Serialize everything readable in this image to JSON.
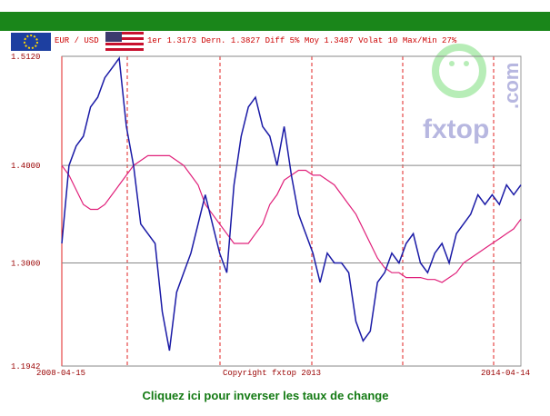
{
  "chart_data": {
    "type": "line",
    "pair": "EUR / USD",
    "summary": "1er 1.3173 Dern. 1.3827 Diff 5% Moy 1.3487 Volat 10 Max/Min 27%",
    "watermark": "fxtop",
    "watermark_suffix": ".com",
    "copyright": "Copyright fxtop 2013",
    "link": "Cliquez ici pour inverser les taux de change",
    "categories": [
      "2008-04-15",
      null,
      null,
      null,
      null,
      null,
      null,
      null,
      null,
      null,
      null,
      null,
      null,
      null,
      null,
      null,
      null,
      null,
      null,
      null,
      null,
      null,
      null,
      null,
      null,
      null,
      null,
      null,
      null,
      null,
      null,
      null,
      null,
      null,
      null,
      null,
      null,
      null,
      null,
      null,
      null,
      null,
      null,
      null,
      null,
      null,
      null,
      null,
      null,
      null,
      null,
      null,
      null,
      null,
      null,
      null,
      null,
      null,
      null,
      null,
      null,
      null,
      null,
      null,
      "2014-04-14"
    ],
    "series": [
      {
        "color": "#1a1aa6",
        "values": [
          1.32,
          1.4,
          1.42,
          1.43,
          1.46,
          1.47,
          1.49,
          1.5,
          1.51,
          1.44,
          1.4,
          1.34,
          1.33,
          1.32,
          1.25,
          1.21,
          1.27,
          1.29,
          1.31,
          1.34,
          1.37,
          1.34,
          1.31,
          1.29,
          1.38,
          1.43,
          1.46,
          1.47,
          1.44,
          1.43,
          1.4,
          1.44,
          1.39,
          1.35,
          1.33,
          1.31,
          1.28,
          1.31,
          1.3,
          1.3,
          1.29,
          1.24,
          1.22,
          1.23,
          1.28,
          1.29,
          1.31,
          1.3,
          1.32,
          1.33,
          1.3,
          1.29,
          1.31,
          1.32,
          1.3,
          1.33,
          1.34,
          1.35,
          1.37,
          1.36,
          1.37,
          1.36,
          1.38,
          1.37,
          1.38
        ]
      },
      {
        "color": "#e0207a",
        "values": [
          1.4,
          1.39,
          1.375,
          1.36,
          1.355,
          1.355,
          1.36,
          1.37,
          1.38,
          1.39,
          1.4,
          1.405,
          1.41,
          1.41,
          1.41,
          1.41,
          1.405,
          1.4,
          1.39,
          1.38,
          1.36,
          1.35,
          1.34,
          1.33,
          1.32,
          1.32,
          1.32,
          1.33,
          1.34,
          1.36,
          1.37,
          1.385,
          1.39,
          1.395,
          1.395,
          1.39,
          1.39,
          1.385,
          1.38,
          1.37,
          1.36,
          1.35,
          1.335,
          1.32,
          1.305,
          1.295,
          1.29,
          1.29,
          1.285,
          1.285,
          1.285,
          1.283,
          1.283,
          1.28,
          1.285,
          1.29,
          1.3,
          1.305,
          1.31,
          1.315,
          1.32,
          1.325,
          1.33,
          1.335,
          1.345
        ]
      }
    ],
    "ylim": [
      1.1942,
      1.512
    ],
    "yticks": [
      {
        "value": 1.1942,
        "label": "1.1942"
      },
      {
        "value": 1.3,
        "label": "1.3000"
      },
      {
        "value": 1.4,
        "label": "1.4000"
      },
      {
        "value": 1.512,
        "label": "1.5120"
      }
    ],
    "grid": true
  }
}
